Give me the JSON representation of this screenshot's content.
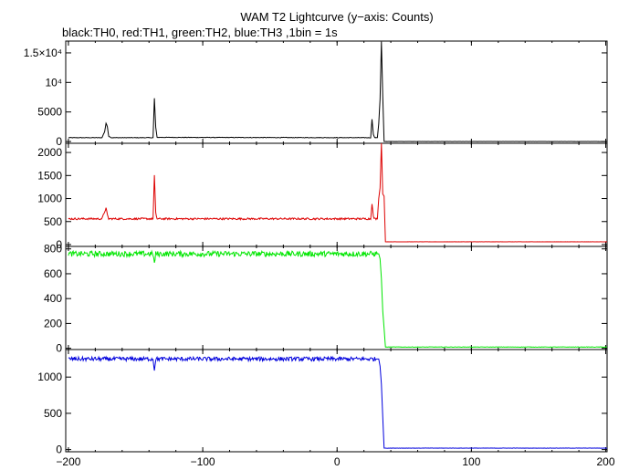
{
  "header": {
    "title": "WAM T2 Lightcurve (y−axis: Counts)",
    "subtitle": "black:TH0, red:TH1, green:TH2, blue:TH3 ,1bin = 1s"
  },
  "chart_data": [
    {
      "type": "line",
      "name": "TH0",
      "color": "#000000",
      "xlim": [
        -202,
        201
      ],
      "ylim": [
        -300,
        17000
      ],
      "yticks": [
        0,
        5000,
        10000,
        15000
      ],
      "ytick_labels": [
        "0",
        "5000",
        "10⁴",
        "1.5×10⁴"
      ],
      "baseline": 650,
      "noise": 45,
      "points": [
        [
          -200,
          650
        ],
        [
          -175,
          650
        ],
        [
          -173,
          1700
        ],
        [
          -172,
          3100
        ],
        [
          -171,
          2500
        ],
        [
          -170,
          900
        ],
        [
          -168,
          650
        ],
        [
          -137,
          650
        ],
        [
          -136,
          7300
        ],
        [
          -135,
          2400
        ],
        [
          -134,
          700
        ],
        [
          25,
          650
        ],
        [
          26,
          3800
        ],
        [
          27,
          1200
        ],
        [
          28,
          650
        ],
        [
          30,
          650
        ],
        [
          31,
          3000
        ],
        [
          32,
          7200
        ],
        [
          33,
          16900
        ],
        [
          34,
          7700
        ],
        [
          35,
          0
        ],
        [
          201,
          0
        ]
      ]
    },
    {
      "type": "line",
      "name": "TH1",
      "color": "#dd0000",
      "xlim": [
        -202,
        201
      ],
      "ylim": [
        -40,
        2200
      ],
      "yticks": [
        0,
        500,
        1000,
        1500,
        2000
      ],
      "ytick_labels": [
        "0",
        "500",
        "1000",
        "1500",
        "2000"
      ],
      "baseline": 560,
      "noise": 20,
      "points": [
        [
          -200,
          560
        ],
        [
          -175,
          560
        ],
        [
          -173,
          720
        ],
        [
          -172,
          790
        ],
        [
          -171,
          640
        ],
        [
          -170,
          560
        ],
        [
          -137,
          560
        ],
        [
          -136,
          1500
        ],
        [
          -135,
          680
        ],
        [
          -134,
          560
        ],
        [
          25,
          560
        ],
        [
          26,
          900
        ],
        [
          27,
          600
        ],
        [
          28,
          560
        ],
        [
          30,
          560
        ],
        [
          31,
          1000
        ],
        [
          32,
          1230
        ],
        [
          33,
          2200
        ],
        [
          34,
          1100
        ],
        [
          35,
          1050
        ],
        [
          36,
          60
        ],
        [
          201,
          60
        ]
      ]
    },
    {
      "type": "line",
      "name": "TH2",
      "color": "#00e600",
      "xlim": [
        -202,
        201
      ],
      "ylim": [
        -10,
        820
      ],
      "yticks": [
        0,
        200,
        400,
        600,
        800
      ],
      "ytick_labels": [
        "0",
        "200",
        "400",
        "600",
        "800"
      ],
      "baseline": 760,
      "noise": 22,
      "points": [
        [
          -200,
          760
        ],
        [
          -137,
          760
        ],
        [
          -136,
          680
        ],
        [
          -135,
          760
        ],
        [
          31,
          760
        ],
        [
          32,
          720
        ],
        [
          33,
          560
        ],
        [
          34,
          300
        ],
        [
          35,
          160
        ],
        [
          36,
          10
        ],
        [
          201,
          10
        ]
      ]
    },
    {
      "type": "line",
      "name": "TH3",
      "color": "#0000dd",
      "xlim": [
        -202,
        201
      ],
      "ylim": [
        -30,
        1380
      ],
      "yticks": [
        0,
        500,
        1000
      ],
      "ytick_labels": [
        "0",
        "500",
        "1000"
      ],
      "xticks": [
        -200,
        -100,
        0,
        100,
        200
      ],
      "xtick_labels": [
        "−200",
        "−100",
        "0",
        "100",
        "200"
      ],
      "baseline": 1250,
      "noise": 28,
      "points": [
        [
          -200,
          1250
        ],
        [
          -137,
          1250
        ],
        [
          -136,
          1100
        ],
        [
          -135,
          1250
        ],
        [
          31,
          1250
        ],
        [
          32,
          1150
        ],
        [
          33,
          900
        ],
        [
          34,
          450
        ],
        [
          35,
          20
        ],
        [
          201,
          20
        ]
      ]
    }
  ]
}
